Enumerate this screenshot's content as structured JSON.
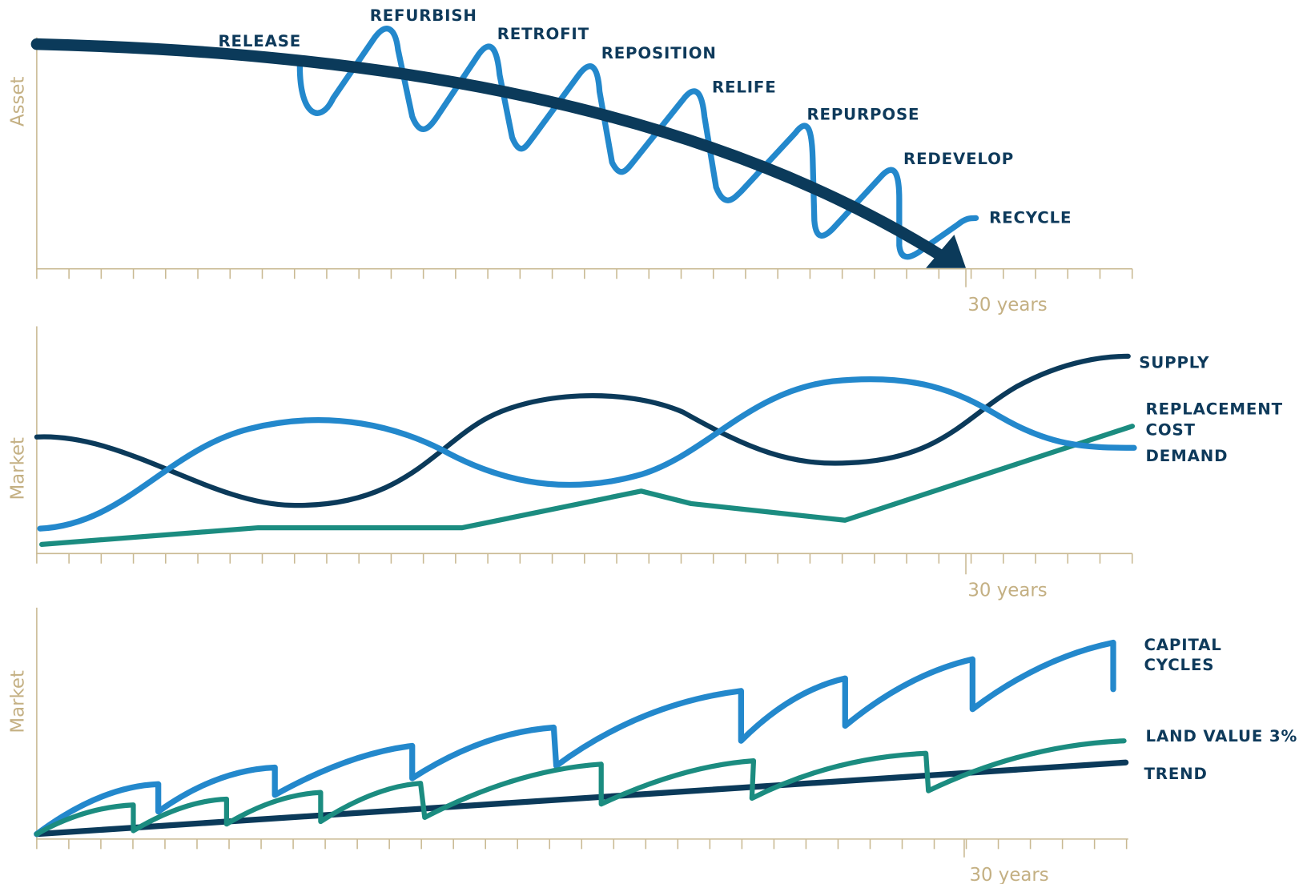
{
  "panels": [
    {
      "y_label": "Asset",
      "x_label": "30 years",
      "labels": [
        "RELEASE",
        "REFURBISH",
        "RETROFIT",
        "REPOSITION",
        "RELIFE",
        "REPURPOSE",
        "REDEVELOP",
        "RECYCLE"
      ]
    },
    {
      "y_label": "Market",
      "x_label": "30 years",
      "labels": [
        "SUPPLY",
        "REPLACEMENT",
        "COST",
        "DEMAND"
      ]
    },
    {
      "y_label": "Market",
      "x_label": "30 years",
      "labels": [
        "CAPITAL",
        "CYCLES",
        "LAND VALUE 3%",
        "TREND"
      ]
    }
  ]
}
